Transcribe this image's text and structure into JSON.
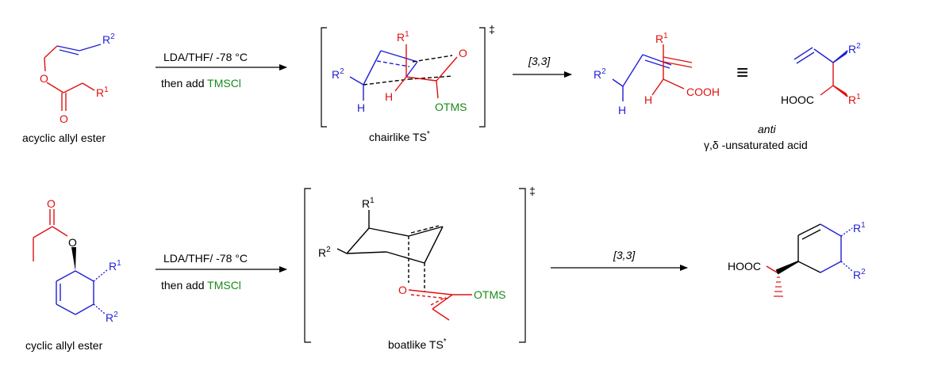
{
  "colors": {
    "blue": "#1f1fd6",
    "red": "#e01010",
    "green": "#1a8a1a",
    "black": "#000000"
  },
  "scheme1": {
    "reactant_caption": "acyclic allyl ester",
    "reagent_line1": "LDA/THF/ -78 °C",
    "reagent_line2_prefix": "then add ",
    "reagent_line2_tms": "TMSCl",
    "ts_caption": "chairlike TS",
    "ts_caption_sup": "*",
    "ts_dagger": "‡",
    "step_label": "[3,3]",
    "equiv_symbol": "≡",
    "product_caption_line1": "anti",
    "product_caption_line2": "γ,δ -unsaturated acid",
    "labels": {
      "R": "R",
      "sup1": "1",
      "sup2": "2",
      "O": "O",
      "H": "H",
      "OTMS": "OTMS",
      "COOH": "COOH",
      "HOOC": "HOOC"
    }
  },
  "scheme2": {
    "reactant_caption": "cyclic allyl ester",
    "reagent_line1": "LDA/THF/ -78 °C",
    "reagent_line2_prefix": "then add ",
    "reagent_line2_tms": "TMSCl",
    "ts_caption": "boatlike TS",
    "ts_caption_sup": "*",
    "ts_dagger": "‡",
    "step_label": "[3,3]",
    "labels": {
      "R": "R",
      "sup1": "1",
      "sup2": "2",
      "O": "O",
      "OTMS": "OTMS",
      "HOOC": "HOOC"
    }
  }
}
